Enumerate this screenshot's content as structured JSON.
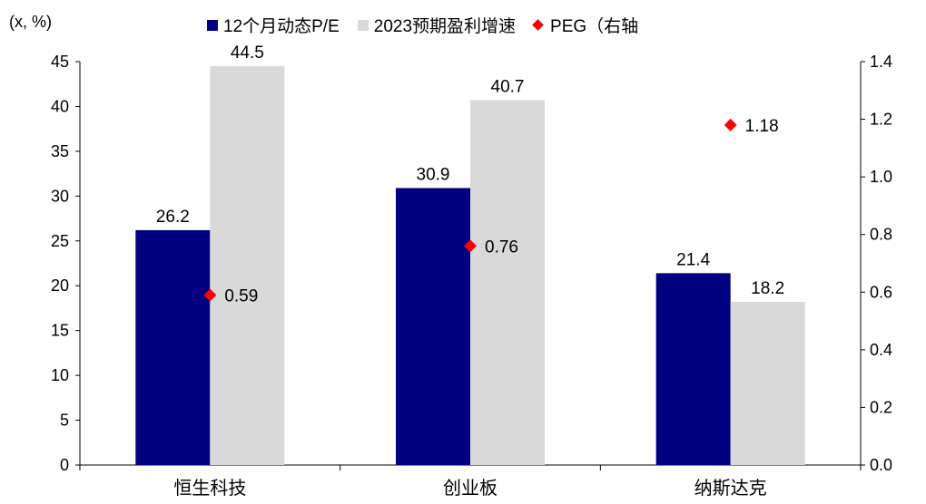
{
  "unit_label": "(x, %)",
  "legend": [
    {
      "label": "12个月动态P/E",
      "color": "#000080",
      "marker": "square"
    },
    {
      "label": "2023预期盈利增速",
      "color": "#d9d9d9",
      "marker": "square"
    },
    {
      "label": "PEG（右轴",
      "color": "#ff0000",
      "marker": "diamond"
    }
  ],
  "chart_data": {
    "type": "bar",
    "categories": [
      "恒生科技",
      "创业板",
      "纳斯达克"
    ],
    "series": [
      {
        "name": "12个月动态P/E",
        "type": "bar",
        "axis": "left",
        "color": "#000080",
        "values": [
          26.2,
          30.9,
          21.4
        ],
        "labels": [
          "26.2",
          "30.9",
          "21.4"
        ]
      },
      {
        "name": "2023预期盈利增速",
        "type": "bar",
        "axis": "left",
        "color": "#d9d9d9",
        "values": [
          44.5,
          40.7,
          18.2
        ],
        "labels": [
          "44.5",
          "40.7",
          "18.2"
        ]
      },
      {
        "name": "PEG（右轴",
        "type": "scatter",
        "axis": "right",
        "color": "#ff0000",
        "values": [
          0.59,
          0.76,
          1.18
        ],
        "labels": [
          "0.59",
          "0.76",
          "1.18"
        ]
      }
    ],
    "y_left": {
      "min": 0,
      "max": 45,
      "ticks": [
        "0",
        "5",
        "10",
        "15",
        "20",
        "25",
        "30",
        "35",
        "40",
        "45"
      ]
    },
    "y_right": {
      "min": 0,
      "max": 1.4,
      "ticks": [
        "0.0",
        "0.2",
        "0.4",
        "0.6",
        "0.8",
        "1.0",
        "1.2",
        "1.4"
      ]
    },
    "grid": false,
    "legend_position": "top"
  }
}
